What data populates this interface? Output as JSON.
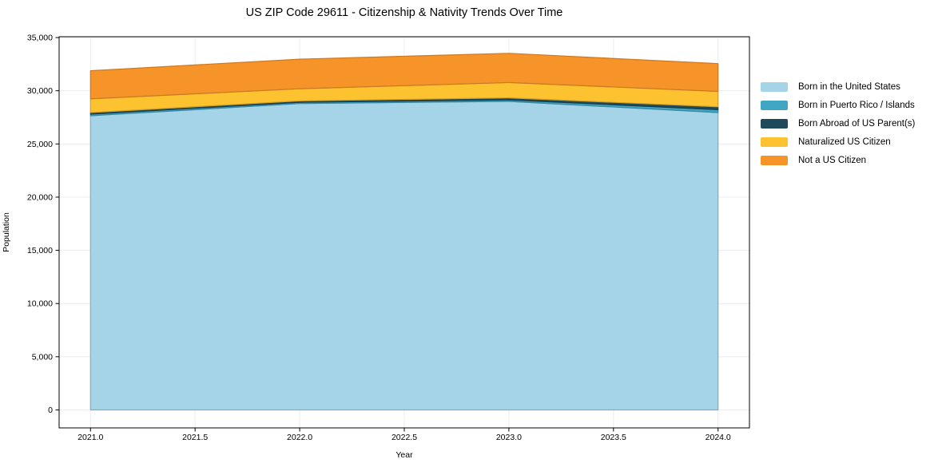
{
  "chart_data": {
    "type": "area",
    "stacked": true,
    "title": "US ZIP Code 29611 - Citizenship & Nativity Trends Over Time",
    "xlabel": "Year",
    "ylabel": "Population",
    "x": [
      2021,
      2022,
      2023,
      2024
    ],
    "series": [
      {
        "name": "Born in the United States",
        "color": "#a5d3e7",
        "values": [
          27650,
          28800,
          29000,
          27950
        ]
      },
      {
        "name": "Born in Puerto Rico / Islands",
        "color": "#41a6c4",
        "values": [
          150,
          120,
          135,
          270
        ]
      },
      {
        "name": "Born Abroad of US Parent(s)",
        "color": "#1f4a5c",
        "values": [
          150,
          130,
          200,
          270
        ]
      },
      {
        "name": "Naturalized US Citizen",
        "color": "#fdc22f",
        "values": [
          1290,
          1140,
          1440,
          1450
        ]
      },
      {
        "name": "Not a US Citizen",
        "color": "#f79429",
        "values": [
          2640,
          2780,
          2745,
          2610
        ]
      }
    ],
    "stack_totals": [
      31880,
      32970,
      33520,
      32550
    ],
    "xticks": [
      2021.0,
      2021.5,
      2022.0,
      2022.5,
      2023.0,
      2023.5,
      2024.0
    ],
    "xtick_labels": [
      "2021.0",
      "2021.5",
      "2022.0",
      "2022.5",
      "2023.0",
      "2023.5",
      "2024.0"
    ],
    "yticks": [
      0,
      5000,
      10000,
      15000,
      20000,
      25000,
      30000,
      35000
    ],
    "ytick_labels": [
      "0",
      "5,000",
      "10,000",
      "15,000",
      "20,000",
      "25,000",
      "30,000",
      "35,000"
    ],
    "xlim": [
      2020.85,
      2024.15
    ],
    "ylim": [
      -1690,
      35080
    ],
    "grid": true,
    "legend_position": "right of plot, vertical"
  },
  "colors": {
    "grid": "#ececec",
    "spine": "#000000",
    "background": "#ffffff"
  }
}
